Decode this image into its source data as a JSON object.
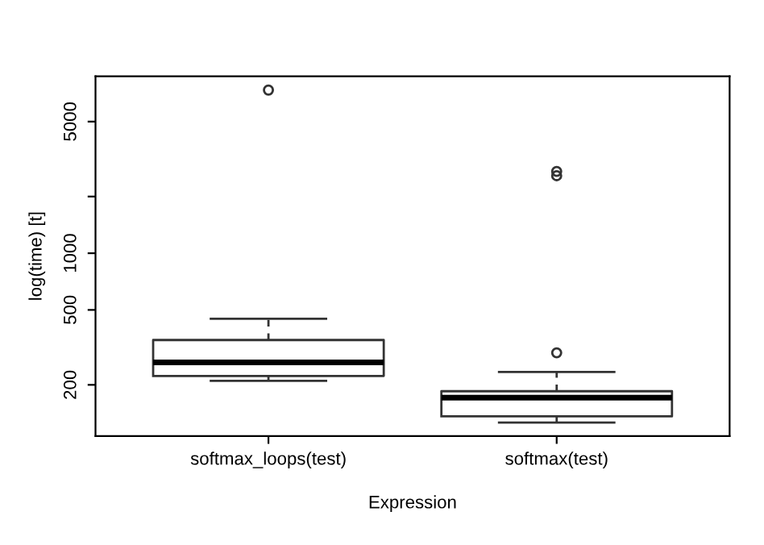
{
  "chart_data": {
    "type": "box",
    "xlabel": "Expression",
    "ylabel": "log(time) [t]",
    "categories": [
      "softmax_loops(test)",
      "softmax(test)"
    ],
    "boxes": [
      {
        "low": 210,
        "q1": 223,
        "median": 263,
        "q3": 346,
        "high": 449,
        "outliers": [
          7350
        ]
      },
      {
        "low": 126,
        "q1": 136,
        "median": 171,
        "q3": 185,
        "high": 234,
        "outliers": [
          296,
          2580,
          2720
        ]
      }
    ],
    "log": "y",
    "ylim": [
      107,
      8700
    ],
    "yticks": [
      200,
      500,
      1000,
      {
        "value": 2000,
        "label": null
      },
      5000
    ],
    "grid": false
  }
}
